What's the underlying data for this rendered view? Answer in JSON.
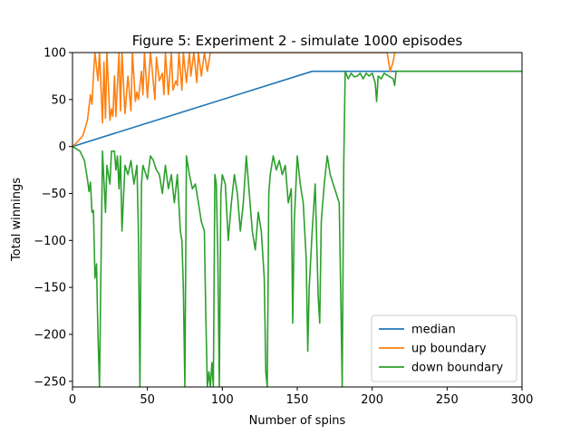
{
  "chart_data": {
    "type": "line",
    "title": "Figure 5: Experiment 2 - simulate 1000 episodes",
    "xlabel": "Number of spins",
    "ylabel": "Total winnings",
    "xlim": [
      0,
      300
    ],
    "ylim": [
      -256,
      100
    ],
    "xticks": [
      0,
      50,
      100,
      150,
      200,
      250,
      300
    ],
    "xtick_labels": [
      "0",
      "50",
      "100",
      "150",
      "200",
      "250",
      "300"
    ],
    "yticks": [
      100,
      50,
      0,
      -50,
      -100,
      -150,
      -200,
      -250
    ],
    "ytick_labels": [
      "100",
      "50",
      "0",
      "−50",
      "−100",
      "−150",
      "−200",
      "−250"
    ],
    "grid": false,
    "legend": "lower-right",
    "series": [
      {
        "name": "median",
        "color": "#1f77b4",
        "points": [
          [
            0,
            0
          ],
          [
            160,
            80
          ],
          [
            300,
            80
          ]
        ]
      },
      {
        "name": "up boundary",
        "color": "#ff7f0e",
        "points": [
          [
            0,
            0
          ],
          [
            4,
            6
          ],
          [
            7,
            12
          ],
          [
            10,
            28
          ],
          [
            12,
            55
          ],
          [
            13,
            45
          ],
          [
            14,
            75
          ],
          [
            15,
            100
          ],
          [
            17,
            70
          ],
          [
            18,
            100
          ],
          [
            20,
            25
          ],
          [
            21,
            90
          ],
          [
            22,
            30
          ],
          [
            23,
            100
          ],
          [
            25,
            28
          ],
          [
            26,
            40
          ],
          [
            27,
            32
          ],
          [
            28,
            75
          ],
          [
            29,
            32
          ],
          [
            31,
            100
          ],
          [
            32,
            38
          ],
          [
            33,
            100
          ],
          [
            35,
            35
          ],
          [
            37,
            75
          ],
          [
            39,
            38
          ],
          [
            40,
            100
          ],
          [
            42,
            48
          ],
          [
            43,
            58
          ],
          [
            44,
            50
          ],
          [
            46,
            80
          ],
          [
            47,
            55
          ],
          [
            48,
            100
          ],
          [
            50,
            52
          ],
          [
            52,
            100
          ],
          [
            53,
            85
          ],
          [
            55,
            50
          ],
          [
            56,
            95
          ],
          [
            58,
            70
          ],
          [
            60,
            78
          ],
          [
            61,
            55
          ],
          [
            62,
            100
          ],
          [
            64,
            55
          ],
          [
            66,
            100
          ],
          [
            67,
            60
          ],
          [
            69,
            70
          ],
          [
            70,
            65
          ],
          [
            71,
            100
          ],
          [
            73,
            60
          ],
          [
            74,
            100
          ],
          [
            76,
            68
          ],
          [
            78,
            100
          ],
          [
            79,
            75
          ],
          [
            81,
            100
          ],
          [
            83,
            68
          ],
          [
            84,
            100
          ],
          [
            86,
            75
          ],
          [
            88,
            100
          ],
          [
            90,
            80
          ],
          [
            92,
            100
          ],
          [
            210,
            100
          ],
          [
            212,
            80
          ],
          [
            214,
            90
          ],
          [
            215,
            100
          ]
        ]
      },
      {
        "name": "down boundary",
        "color": "#2ca02c",
        "points": [
          [
            0,
            0
          ],
          [
            5,
            -5
          ],
          [
            8,
            -15
          ],
          [
            10,
            -35
          ],
          [
            11,
            -48
          ],
          [
            12,
            -38
          ],
          [
            13,
            -70
          ],
          [
            14,
            -68
          ],
          [
            15,
            -140
          ],
          [
            16,
            -125
          ],
          [
            17,
            -200
          ],
          [
            18,
            -256
          ],
          [
            19,
            -130
          ],
          [
            20,
            -5
          ],
          [
            22,
            -70
          ],
          [
            23,
            -20
          ],
          [
            25,
            -40
          ],
          [
            26,
            -5
          ],
          [
            28,
            -5
          ],
          [
            29,
            -25
          ],
          [
            30,
            -10
          ],
          [
            31,
            -45
          ],
          [
            32,
            -10
          ],
          [
            33,
            -90
          ],
          [
            35,
            -20
          ],
          [
            37,
            -30
          ],
          [
            39,
            -15
          ],
          [
            41,
            -40
          ],
          [
            43,
            -20
          ],
          [
            44,
            -90
          ],
          [
            45,
            -256
          ],
          [
            46,
            -40
          ],
          [
            47,
            -20
          ],
          [
            48,
            -25
          ],
          [
            50,
            -35
          ],
          [
            52,
            -10
          ],
          [
            54,
            -15
          ],
          [
            56,
            -25
          ],
          [
            58,
            -30
          ],
          [
            60,
            -50
          ],
          [
            62,
            -20
          ],
          [
            64,
            -45
          ],
          [
            66,
            -30
          ],
          [
            68,
            -60
          ],
          [
            70,
            -30
          ],
          [
            72,
            -90
          ],
          [
            73,
            -100
          ],
          [
            74,
            -150
          ],
          [
            75,
            -256
          ],
          [
            76,
            -10
          ],
          [
            78,
            -30
          ],
          [
            80,
            -45
          ],
          [
            82,
            -40
          ],
          [
            84,
            -60
          ],
          [
            86,
            -80
          ],
          [
            88,
            -90
          ],
          [
            89,
            -180
          ],
          [
            90,
            -256
          ],
          [
            91,
            -240
          ],
          [
            92,
            -256
          ],
          [
            93,
            -230
          ],
          [
            94,
            -256
          ],
          [
            95,
            -30
          ],
          [
            96,
            -40
          ],
          [
            97,
            -120
          ],
          [
            98,
            -256
          ],
          [
            99,
            -50
          ],
          [
            100,
            -30
          ],
          [
            102,
            -40
          ],
          [
            104,
            -100
          ],
          [
            106,
            -60
          ],
          [
            108,
            -30
          ],
          [
            110,
            -50
          ],
          [
            112,
            -90
          ],
          [
            114,
            -60
          ],
          [
            116,
            -10
          ],
          [
            118,
            -50
          ],
          [
            120,
            -90
          ],
          [
            122,
            -110
          ],
          [
            124,
            -70
          ],
          [
            126,
            -90
          ],
          [
            128,
            -140
          ],
          [
            129,
            -240
          ],
          [
            130,
            -256
          ],
          [
            131,
            -50
          ],
          [
            132,
            -30
          ],
          [
            134,
            -10
          ],
          [
            136,
            -25
          ],
          [
            138,
            -15
          ],
          [
            140,
            -30
          ],
          [
            142,
            -20
          ],
          [
            144,
            -60
          ],
          [
            146,
            -45
          ],
          [
            147,
            -188
          ],
          [
            148,
            -80
          ],
          [
            150,
            -10
          ],
          [
            152,
            -40
          ],
          [
            154,
            -60
          ],
          [
            156,
            -120
          ],
          [
            157,
            -218
          ],
          [
            158,
            -150
          ],
          [
            160,
            -90
          ],
          [
            162,
            -40
          ],
          [
            164,
            -160
          ],
          [
            165,
            -188
          ],
          [
            166,
            -80
          ],
          [
            168,
            -40
          ],
          [
            170,
            -10
          ],
          [
            172,
            -30
          ],
          [
            174,
            -40
          ],
          [
            176,
            -50
          ],
          [
            178,
            -60
          ],
          [
            179,
            -150
          ],
          [
            180,
            -256
          ],
          [
            181,
            -20
          ],
          [
            182,
            80
          ],
          [
            184,
            72
          ],
          [
            186,
            78
          ],
          [
            188,
            74
          ],
          [
            190,
            75
          ],
          [
            192,
            78
          ],
          [
            194,
            72
          ],
          [
            196,
            78
          ],
          [
            198,
            75
          ],
          [
            200,
            78
          ],
          [
            202,
            68
          ],
          [
            203,
            48
          ],
          [
            204,
            75
          ],
          [
            206,
            72
          ],
          [
            208,
            78
          ],
          [
            210,
            76
          ],
          [
            212,
            74
          ],
          [
            214,
            72
          ],
          [
            215,
            65
          ],
          [
            216,
            80
          ],
          [
            300,
            80
          ]
        ]
      }
    ]
  }
}
